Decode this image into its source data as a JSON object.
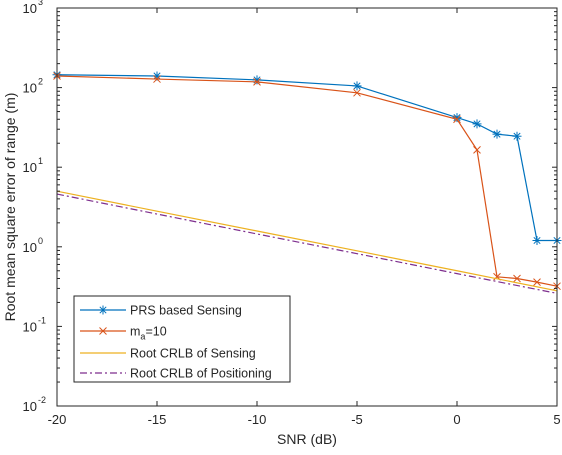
{
  "chart_data": {
    "type": "line",
    "xlabel": "SNR (dB)",
    "ylabel": "Root mean square error of range (m)",
    "xlim": [
      -20,
      5
    ],
    "ylim": [
      0.01,
      1000
    ],
    "yscale": "log",
    "xticks": [
      -20,
      -15,
      -10,
      -5,
      0,
      5
    ],
    "xtick_labels": [
      "-20",
      "-15",
      "-10",
      "-5",
      "0",
      "5"
    ],
    "yticks": [
      0.01,
      0.1,
      1,
      10,
      100,
      1000
    ],
    "ytick_labels": [
      {
        "base": "10",
        "exp": "-2"
      },
      {
        "base": "10",
        "exp": "-1"
      },
      {
        "base": "10",
        "exp": "0"
      },
      {
        "base": "10",
        "exp": "1"
      },
      {
        "base": "10",
        "exp": "2"
      },
      {
        "base": "10",
        "exp": "3"
      }
    ],
    "grid": false,
    "legend_position": "bottom-left",
    "series": [
      {
        "name": "PRS based Sensing",
        "color": "#0072BD",
        "marker": "asterisk",
        "line": "solid",
        "x": [
          -20,
          -15,
          -10,
          -5,
          0,
          1,
          2,
          3,
          4,
          5
        ],
        "y": [
          145,
          140,
          125,
          105,
          42,
          35,
          26,
          24.5,
          1.2,
          1.2
        ]
      },
      {
        "name_base": "m",
        "name_sub": "a",
        "name_rest": "=10",
        "color": "#D95319",
        "marker": "x",
        "line": "solid",
        "x": [
          -20,
          -15,
          -10,
          -5,
          0,
          1,
          2,
          3,
          4,
          5
        ],
        "y": [
          140,
          128,
          118,
          86,
          40,
          16.5,
          0.42,
          0.4,
          0.36,
          0.32
        ]
      },
      {
        "name": "Root CRLB of Sensing",
        "color": "#EDB120",
        "marker": "none",
        "line": "solid",
        "x": [
          -20,
          -15,
          -10,
          -5,
          0,
          5
        ],
        "y": [
          5.0,
          2.8,
          1.58,
          0.89,
          0.5,
          0.28
        ]
      },
      {
        "name": "Root CRLB of Positioning",
        "color": "#7E2F8E",
        "marker": "none",
        "line": "dashdot",
        "x": [
          -20,
          -15,
          -10,
          -5,
          0,
          5
        ],
        "y": [
          4.6,
          2.58,
          1.45,
          0.82,
          0.46,
          0.26
        ]
      }
    ]
  }
}
